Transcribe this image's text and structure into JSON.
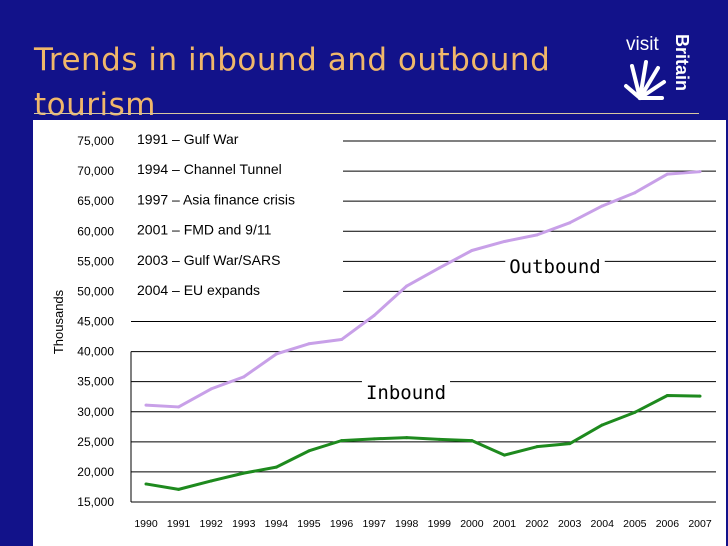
{
  "slide": {
    "title": "Trends in inbound and outbound tourism"
  },
  "logo": {
    "word": "visit",
    "brand": "Britain"
  },
  "colors": {
    "background": "#12128a",
    "title": "#f0b76a",
    "outbound": "#c8a0e8",
    "inbound": "#1e8a1e"
  },
  "chart_data": {
    "type": "line",
    "x": [
      1990,
      1991,
      1992,
      1993,
      1994,
      1995,
      1996,
      1997,
      1998,
      1999,
      2000,
      2001,
      2002,
      2003,
      2004,
      2005,
      2006,
      2007
    ],
    "x_tick_labels": [
      "1990",
      "1991",
      "1992",
      "1993",
      "1994",
      "1995",
      "1996",
      "1997",
      "1998",
      "1999",
      "2000",
      "2001",
      "2002",
      "2003",
      "2004",
      "2005",
      "2006",
      "2007"
    ],
    "ylim": [
      15000,
      75000
    ],
    "y_ticks": [
      15000,
      20000,
      25000,
      30000,
      35000,
      40000,
      45000,
      50000,
      55000,
      60000,
      65000,
      70000,
      75000
    ],
    "y_tick_labels": [
      "15,000",
      "20,000",
      "25,000",
      "30,000",
      "35,000",
      "40,000",
      "45,000",
      "50,000",
      "55,000",
      "60,000",
      "65,000",
      "70,000",
      "75,000"
    ],
    "ylabel": "Thousands",
    "xlabel": "",
    "grid": "horizontal",
    "series": [
      {
        "name": "Outbound",
        "color": "#c8a0e8",
        "values": [
          31100,
          30800,
          33800,
          35800,
          39600,
          41300,
          42000,
          46000,
          50900,
          53900,
          56800,
          58300,
          59400,
          61400,
          64200,
          66400,
          69500,
          69900
        ]
      },
      {
        "name": "Inbound",
        "color": "#1e8a1e",
        "values": [
          18000,
          17100,
          18500,
          19800,
          20800,
          23500,
          25200,
          25500,
          25700,
          25400,
          25200,
          22800,
          24200,
          24700,
          27800,
          29900,
          32700,
          32600
        ]
      }
    ],
    "annotations": [
      "1991 – Gulf War",
      "1994 – Channel Tunnel",
      "1997 – Asia finance crisis",
      "2001 – FMD and 9/11",
      "2003 – Gulf War/SARS",
      "2004 – EU expands"
    ]
  }
}
